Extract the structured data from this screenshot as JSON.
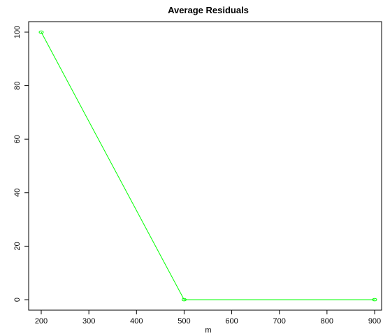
{
  "chart_data": {
    "type": "line",
    "title": "Average Residuals",
    "xlabel": "m",
    "ylabel": "",
    "x": [
      200,
      500,
      900
    ],
    "series": [
      {
        "values": [
          100,
          0,
          0
        ],
        "color": "#00ff00",
        "marker": "open-circle"
      }
    ],
    "xlim": [
      200,
      900
    ],
    "ylim": [
      0,
      100
    ],
    "xticks": [
      200,
      300,
      400,
      500,
      600,
      700,
      800,
      900
    ],
    "yticks": [
      0,
      20,
      40,
      60,
      80,
      100
    ],
    "grid": false,
    "legend": "none"
  }
}
